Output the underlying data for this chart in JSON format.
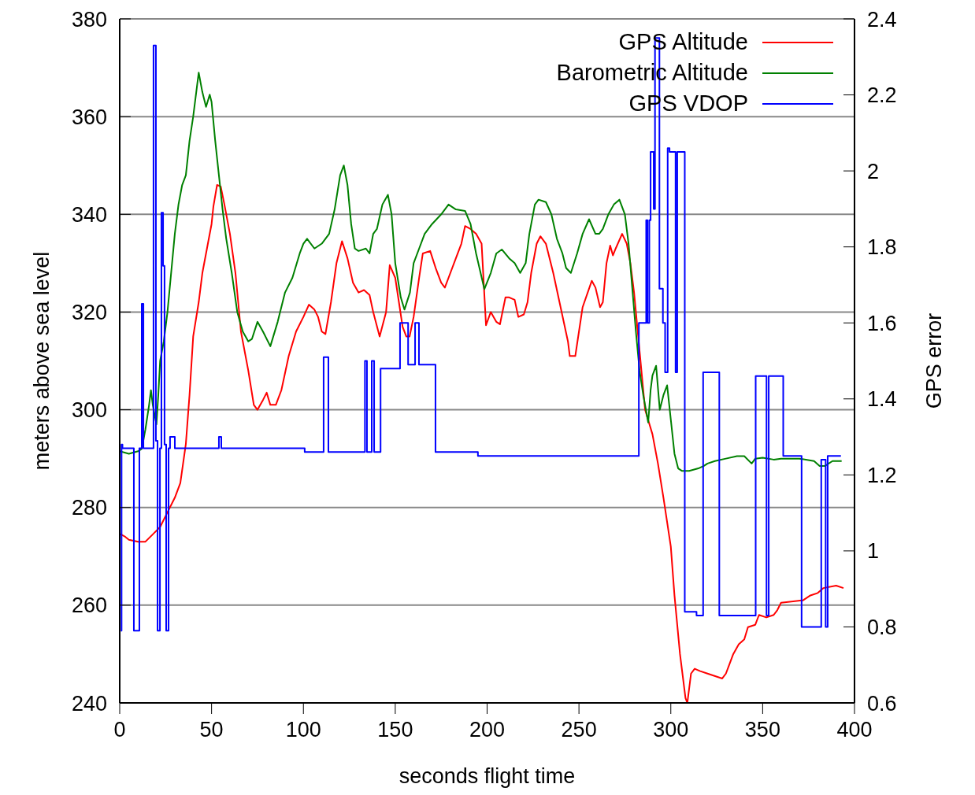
{
  "chart_data": {
    "type": "line",
    "xlabel": "seconds flight time",
    "ylabel": "meters above sea level",
    "y2label": "GPS error",
    "xlim": [
      0,
      400
    ],
    "xticks": [
      0,
      50,
      100,
      150,
      200,
      250,
      300,
      350,
      400
    ],
    "ylim": [
      240,
      380
    ],
    "yticks": [
      240,
      260,
      280,
      300,
      320,
      340,
      360,
      380
    ],
    "y2lim": [
      0.6,
      2.4
    ],
    "y2ticks": [
      0.6,
      0.8,
      1,
      1.2,
      1.4,
      1.6,
      1.8,
      2,
      2.2,
      2.4
    ],
    "grid": true,
    "legend": "top right",
    "series": [
      {
        "name": "GPS Altitude",
        "color": "#ff0000",
        "x": [
          0,
          3,
          5,
          10,
          14,
          18,
          22,
          26,
          30,
          33,
          36,
          38,
          40,
          43,
          45,
          48,
          50,
          51,
          53,
          55,
          57,
          60,
          63,
          66,
          70,
          73,
          75,
          78,
          80,
          82,
          85,
          88,
          92,
          96,
          100,
          103,
          106,
          108,
          110,
          112,
          115,
          118,
          121,
          124,
          127,
          130,
          133,
          136,
          138,
          141.5,
          145,
          147,
          150,
          152,
          154,
          156,
          157.8,
          160,
          163,
          165,
          169,
          172,
          175,
          177,
          180,
          183,
          186,
          188,
          191,
          194,
          197,
          199.4,
          202,
          205,
          207,
          210,
          212,
          215,
          217,
          220,
          222,
          224,
          227,
          229,
          232,
          236,
          240,
          244,
          245,
          248,
          250,
          252,
          257,
          259,
          261.5,
          263,
          265,
          267,
          268.5,
          270,
          273.5,
          276,
          278,
          280,
          282,
          284,
          286,
          290,
          293,
          296,
          300,
          302,
          305,
          308,
          309,
          311,
          313,
          316,
          320,
          328,
          330,
          332,
          334,
          337,
          340,
          342,
          346,
          348,
          352,
          356,
          358,
          360,
          372,
          376,
          380,
          383,
          390,
          394
        ],
        "values": [
          274.6,
          274,
          273.4,
          273,
          273,
          274.5,
          276,
          279,
          282,
          285,
          293,
          303,
          315,
          322,
          328,
          334,
          338,
          341.6,
          346,
          345.7,
          342,
          336,
          328,
          316,
          308,
          301,
          300,
          302,
          303.5,
          301,
          301,
          304,
          311,
          316,
          319,
          321.5,
          320.5,
          319,
          316,
          315.5,
          322,
          330,
          334.5,
          331,
          326,
          324,
          324.5,
          323.5,
          320,
          315,
          320,
          329.6,
          327,
          322,
          317,
          315,
          315,
          319,
          327,
          332,
          332.5,
          329,
          326,
          325,
          328,
          331,
          334,
          337.6,
          337,
          336,
          334,
          317.3,
          320,
          318,
          317.5,
          323,
          323,
          322.5,
          319,
          319.5,
          322,
          328,
          334,
          335.5,
          334,
          328,
          321,
          314,
          311,
          311,
          316,
          321,
          326.4,
          325,
          321,
          322,
          330,
          333.6,
          331.6,
          333,
          336,
          334,
          330,
          324,
          316,
          308,
          300,
          295,
          289,
          282,
          272,
          262,
          250,
          241,
          240,
          246,
          247,
          246.5,
          246,
          245,
          246,
          248,
          250,
          252,
          253,
          255.5,
          256,
          258,
          257.5,
          258,
          259,
          260.5,
          261,
          262,
          262.5,
          263.5,
          264,
          263.5
        ]
      },
      {
        "name": "Barometric Altitude",
        "color": "#008000",
        "x": [
          0,
          5,
          10,
          12,
          14,
          16,
          17,
          18,
          20,
          21,
          22,
          24,
          26,
          28,
          30,
          32,
          34,
          36,
          38,
          40,
          42,
          43,
          45,
          47,
          49,
          50,
          52,
          54,
          56,
          58,
          61,
          64,
          67,
          70,
          72,
          75,
          78,
          82,
          86,
          90,
          94,
          98,
          100,
          102,
          106,
          110,
          114,
          117,
          120,
          122,
          124,
          126,
          128,
          130,
          134,
          136,
          138,
          140,
          143,
          146,
          148,
          150,
          153,
          155,
          158,
          160,
          163,
          166,
          170,
          175,
          179,
          183,
          188,
          191,
          194,
          198.5,
          202,
          205,
          208,
          212,
          215,
          218,
          221,
          223,
          226,
          228,
          232,
          235,
          238,
          241,
          243,
          245.6,
          249,
          252,
          255.5,
          259,
          261,
          263,
          266,
          269,
          272,
          273,
          275,
          277,
          279,
          281,
          283,
          285,
          287.7,
          289,
          290,
          292,
          294,
          296,
          298,
          300,
          302,
          304,
          306,
          310,
          315,
          318,
          320,
          324,
          330,
          336,
          340,
          344,
          346,
          350,
          356,
          360,
          370,
          378,
          381,
          384,
          388,
          393
        ],
        "values": [
          291.5,
          291,
          291.5,
          292,
          296,
          301,
          304,
          301,
          297,
          303,
          310,
          314,
          320,
          328,
          336,
          342,
          346,
          348,
          355,
          360,
          366,
          369,
          365,
          362,
          364.5,
          363,
          355,
          348,
          341,
          335,
          328,
          320,
          316,
          314,
          314.5,
          318,
          316,
          313,
          318,
          324,
          327,
          332,
          334,
          335,
          333,
          334,
          336,
          341,
          348,
          350,
          346,
          338,
          333,
          332.5,
          333,
          332,
          336,
          337,
          342,
          344,
          340,
          330,
          323,
          320.5,
          324,
          330,
          333,
          336,
          338,
          340,
          342,
          341,
          340.7,
          338,
          332,
          324.7,
          328,
          332,
          332.8,
          331,
          330,
          328,
          330,
          336,
          342,
          343,
          342.5,
          340,
          335,
          332,
          329,
          328,
          332,
          336,
          339,
          336,
          336,
          337,
          340,
          342,
          343,
          342,
          340,
          334,
          325,
          316,
          308,
          303,
          297.4,
          304,
          307,
          309,
          300,
          303,
          305,
          298,
          291,
          288,
          287.5,
          287.5,
          288,
          288.5,
          289,
          289.5,
          290,
          290.5,
          290.5,
          289,
          290,
          290.2,
          289.8,
          290,
          290,
          289.5,
          288.5,
          288.5,
          289.5,
          289.5
        ]
      },
      {
        "name": "GPS VDOP",
        "color": "#0000ff",
        "type": "step",
        "axis": "y2",
        "x": [
          0.6,
          1,
          1.5,
          7.7,
          10.7,
          12,
          12.9,
          18.4,
          19.7,
          20.6,
          21.9,
          22.7,
          23.6,
          24.4,
          25.3,
          26.6,
          27.4,
          30,
          54,
          55.3,
          100.7,
          111,
          113.6,
          133.5,
          134.6,
          137.2,
          138.5,
          142,
          152.6,
          157,
          160.8,
          162.9,
          171.9,
          195,
          282.6,
          286.6,
          287.3,
          288.3,
          289,
          290.7,
          291.4,
          293.8,
          295.7,
          296.9,
          298.3,
          299.3,
          302.6,
          303.5,
          307.6,
          314,
          317.6,
          326.4,
          346.2,
          352.1,
          353.3,
          361.2,
          371.2,
          381.9,
          384.3,
          385.4,
          392.6
        ],
        "values": [
          0.79,
          1.28,
          1.27,
          0.79,
          1.27,
          1.65,
          1.27,
          2.33,
          1.29,
          0.79,
          1.27,
          1.89,
          1.75,
          1.28,
          0.79,
          1.27,
          1.3,
          1.27,
          1.3,
          1.27,
          1.26,
          1.51,
          1.26,
          1.5,
          1.26,
          1.5,
          1.26,
          1.48,
          1.6,
          1.49,
          1.6,
          1.49,
          1.26,
          1.25,
          1.6,
          1.87,
          1.6,
          1.87,
          2.05,
          1.9,
          2.35,
          1.69,
          1.6,
          1.47,
          2.06,
          2.05,
          1.47,
          2.05,
          0.84,
          0.83,
          1.47,
          0.83,
          1.46,
          0.83,
          1.46,
          1.25,
          0.8,
          1.24,
          0.8,
          1.25,
          1.25
        ]
      }
    ]
  }
}
